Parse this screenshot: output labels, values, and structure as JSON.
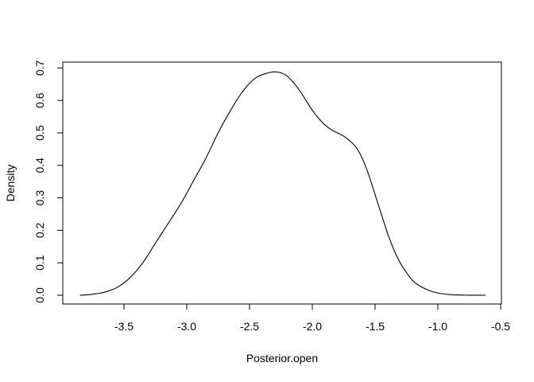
{
  "chart_data": {
    "type": "line",
    "title": "",
    "xlabel": "Posterior.open",
    "ylabel": "Density",
    "xlim": [
      -3.85,
      -0.45
    ],
    "ylim": [
      0,
      0.7
    ],
    "x_ticks": [
      "-3.5",
      "-3.0",
      "-2.5",
      "-2.0",
      "-1.5",
      "-1.0",
      "-0.5"
    ],
    "x_tick_values": [
      -3.5,
      -3.0,
      -2.5,
      -2.0,
      -1.5,
      -1.0,
      -0.5
    ],
    "y_ticks": [
      "0.0",
      "0.1",
      "0.2",
      "0.3",
      "0.4",
      "0.5",
      "0.6",
      "0.7"
    ],
    "y_tick_values": [
      0,
      0.1,
      0.2,
      0.3,
      0.4,
      0.5,
      0.6,
      0.7
    ],
    "grid": false,
    "legend": "none",
    "series": [
      {
        "x": [
          -3.85,
          -3.75,
          -3.65,
          -3.55,
          -3.45,
          -3.35,
          -3.25,
          -3.15,
          -3.05,
          -2.95,
          -2.85,
          -2.75,
          -2.65,
          -2.55,
          -2.45,
          -2.35,
          -2.3,
          -2.25,
          -2.2,
          -2.15,
          -2.1,
          -2.05,
          -2.0,
          -1.95,
          -1.9,
          -1.85,
          -1.8,
          -1.75,
          -1.7,
          -1.65,
          -1.6,
          -1.55,
          -1.5,
          -1.45,
          -1.4,
          -1.35,
          -1.3,
          -1.25,
          -1.2,
          -1.15,
          -1.1,
          -1.05,
          -1.0,
          -0.95,
          -0.9,
          -0.85,
          -0.8,
          -0.75,
          -0.7,
          -0.62
        ],
        "y": [
          0.0,
          0.003,
          0.01,
          0.025,
          0.055,
          0.1,
          0.16,
          0.22,
          0.28,
          0.35,
          0.42,
          0.5,
          0.57,
          0.63,
          0.67,
          0.685,
          0.688,
          0.685,
          0.675,
          0.655,
          0.63,
          0.6,
          0.57,
          0.545,
          0.525,
          0.51,
          0.5,
          0.49,
          0.475,
          0.455,
          0.42,
          0.37,
          0.31,
          0.25,
          0.19,
          0.14,
          0.1,
          0.07,
          0.045,
          0.03,
          0.02,
          0.012,
          0.007,
          0.004,
          0.002,
          0.001,
          0.0005,
          0.0002,
          0.0001,
          0.0
        ]
      }
    ]
  }
}
